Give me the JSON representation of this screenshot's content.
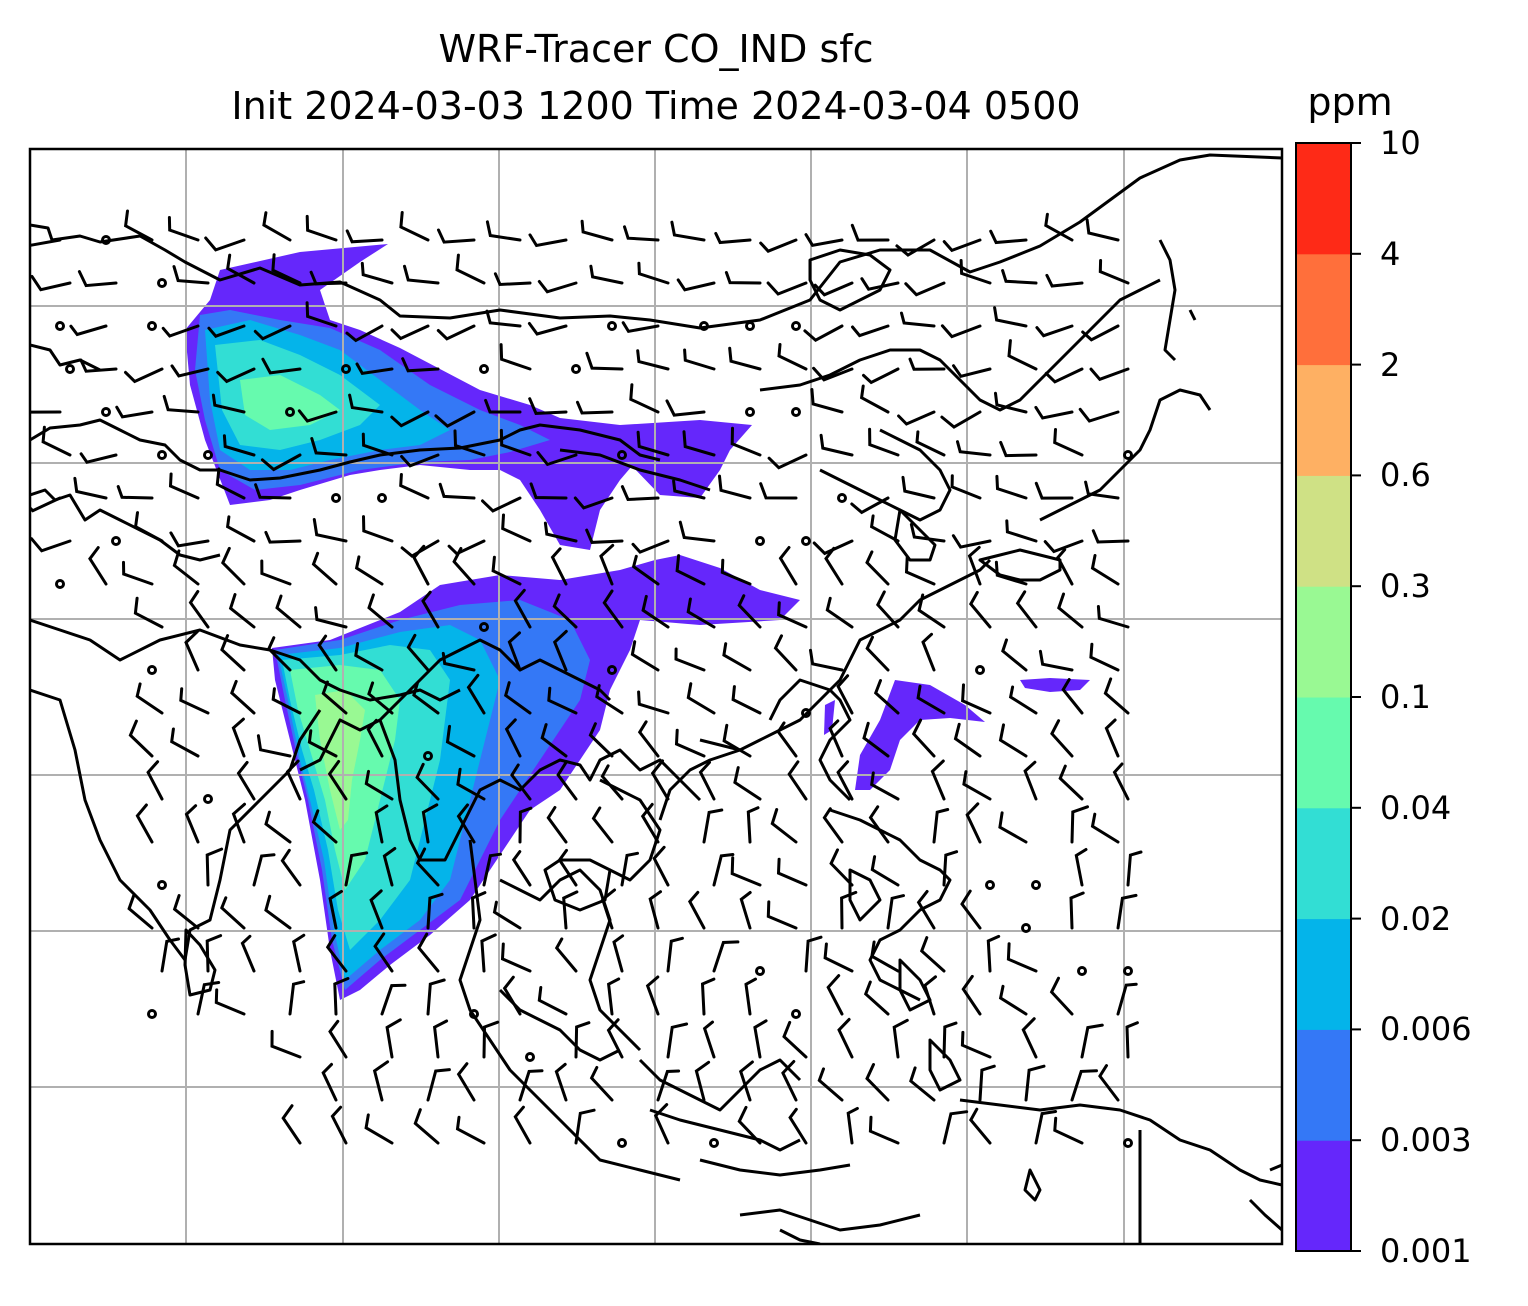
{
  "chart_data": {
    "type": "heatmap",
    "title": "WRF-Tracer CO_IND sfc",
    "subtitle": "Init 2024-03-03 1200 Time 2024-03-04 0500",
    "variable": "CO_IND",
    "level": "sfc",
    "init_time": "2024-03-03 1200",
    "valid_time": "2024-03-04 0500",
    "colorbar": {
      "unit": "ppm",
      "levels": [
        "0.001",
        "0.003",
        "0.006",
        "0.02",
        "0.04",
        "0.1",
        "0.3",
        "0.6",
        "2",
        "4",
        "10"
      ],
      "colors": [
        "#6527fb",
        "#3478f6",
        "#04b4ea",
        "#32ded4",
        "#66faae",
        "#99f993",
        "#cfe185",
        "#feb063",
        "#ff6f3b",
        "#fe2a17"
      ]
    },
    "map": {
      "projection": "PlateCarree",
      "gridlines": true,
      "coastlines": true,
      "wind_barbs": true
    }
  }
}
